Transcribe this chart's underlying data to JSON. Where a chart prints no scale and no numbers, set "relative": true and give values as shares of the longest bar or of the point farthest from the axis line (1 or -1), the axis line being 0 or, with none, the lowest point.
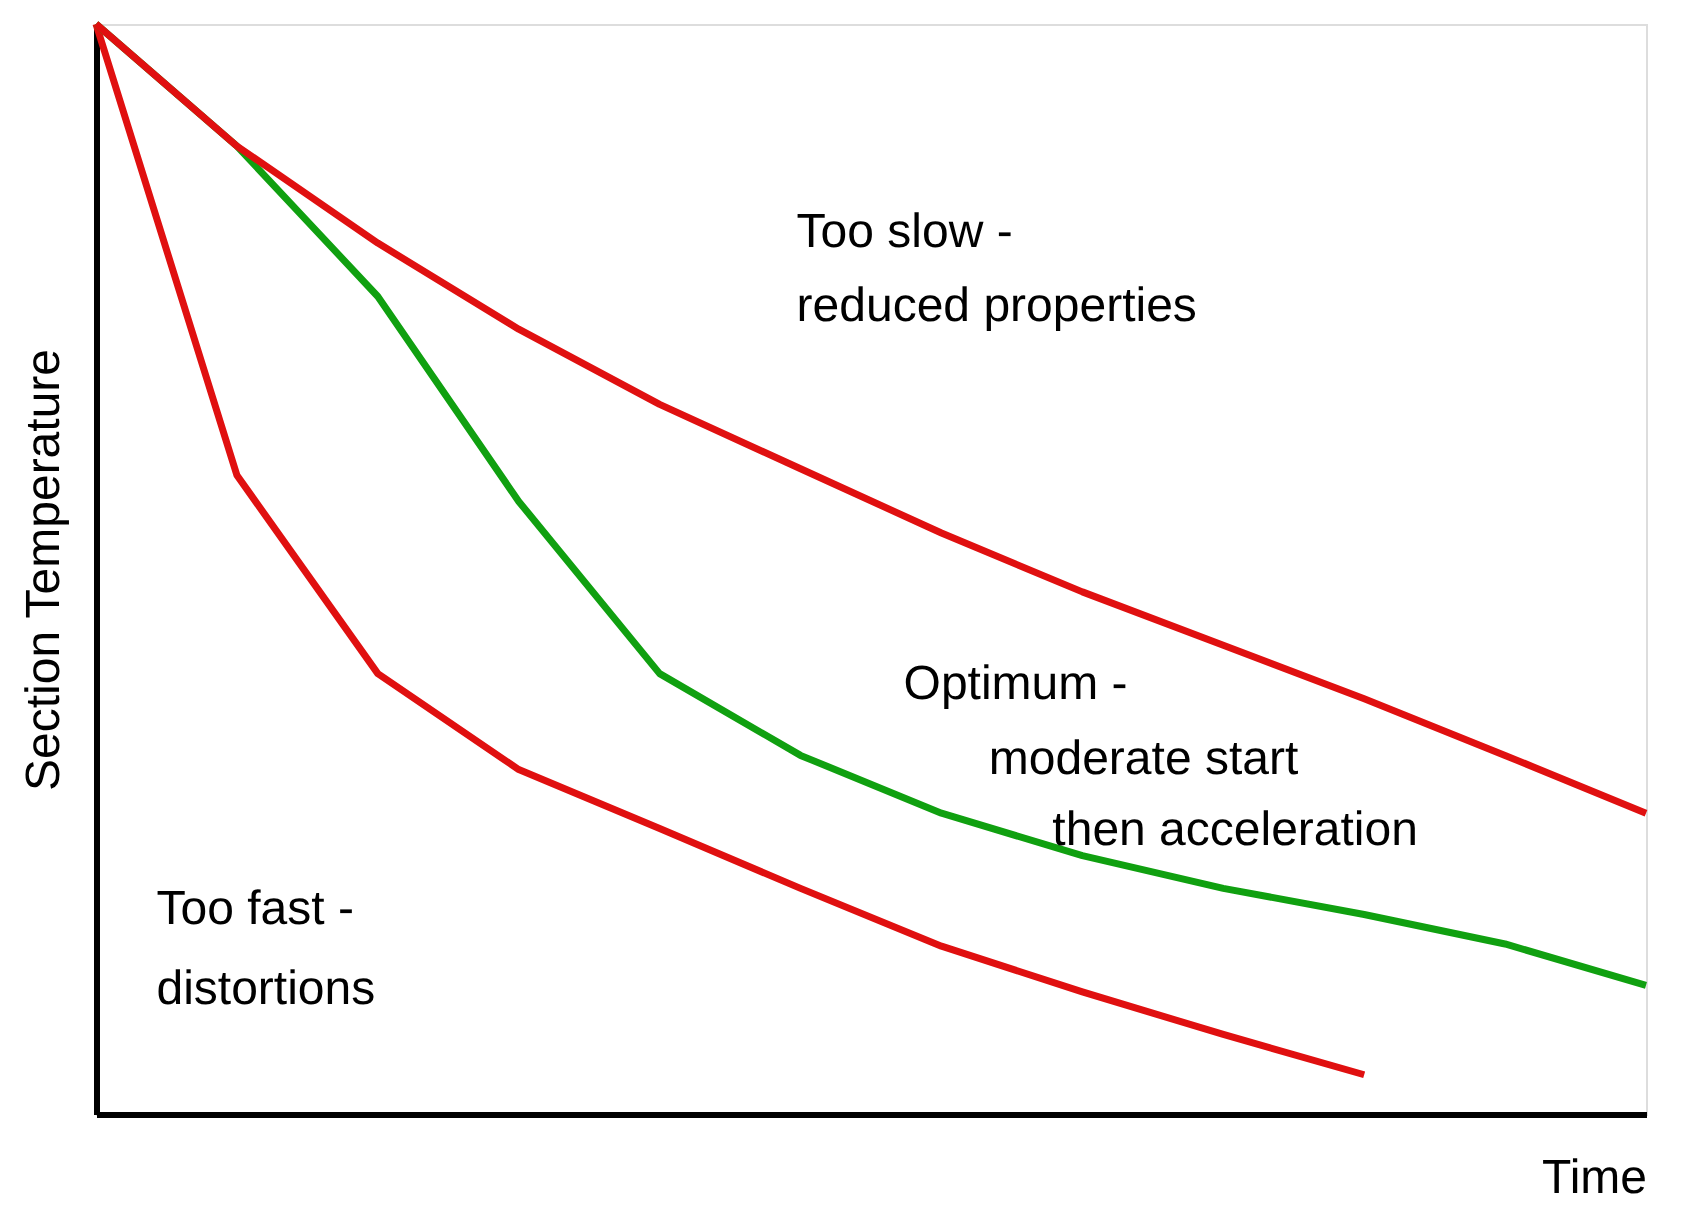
{
  "chart_data": {
    "type": "line",
    "relative": true,
    "xlabel": "Time",
    "ylabel": "Section Temperature",
    "tick_labels": false,
    "grid": false,
    "legend": false,
    "line_style": "solid",
    "categories": [
      null,
      null,
      null,
      null,
      null,
      null,
      null,
      null,
      null,
      null,
      null,
      null
    ],
    "series": [
      {
        "color": "#e01010",
        "values": [
          1,
          0.586,
          0.404,
          0.316,
          0.262,
          0.207,
          0.154,
          0.112,
          0.073,
          0.036,
          null,
          null
        ]
      },
      {
        "color": "#10a010",
        "values": [
          1,
          0.888,
          0.75,
          0.562,
          0.404,
          0.329,
          0.276,
          0.237,
          0.207,
          0.183,
          0.156,
          0.118
        ]
      },
      {
        "color": "#e01010",
        "values": [
          1,
          0.888,
          0.799,
          0.72,
          0.651,
          0.592,
          0.533,
          0.479,
          0.43,
          0.381,
          0.329,
          0.276
        ]
      }
    ],
    "annotations": [
      "Too slow -",
      "reduced properties",
      "Optimum -",
      "moderate start",
      "then acceleration",
      "Too fast -",
      "distortions"
    ]
  }
}
